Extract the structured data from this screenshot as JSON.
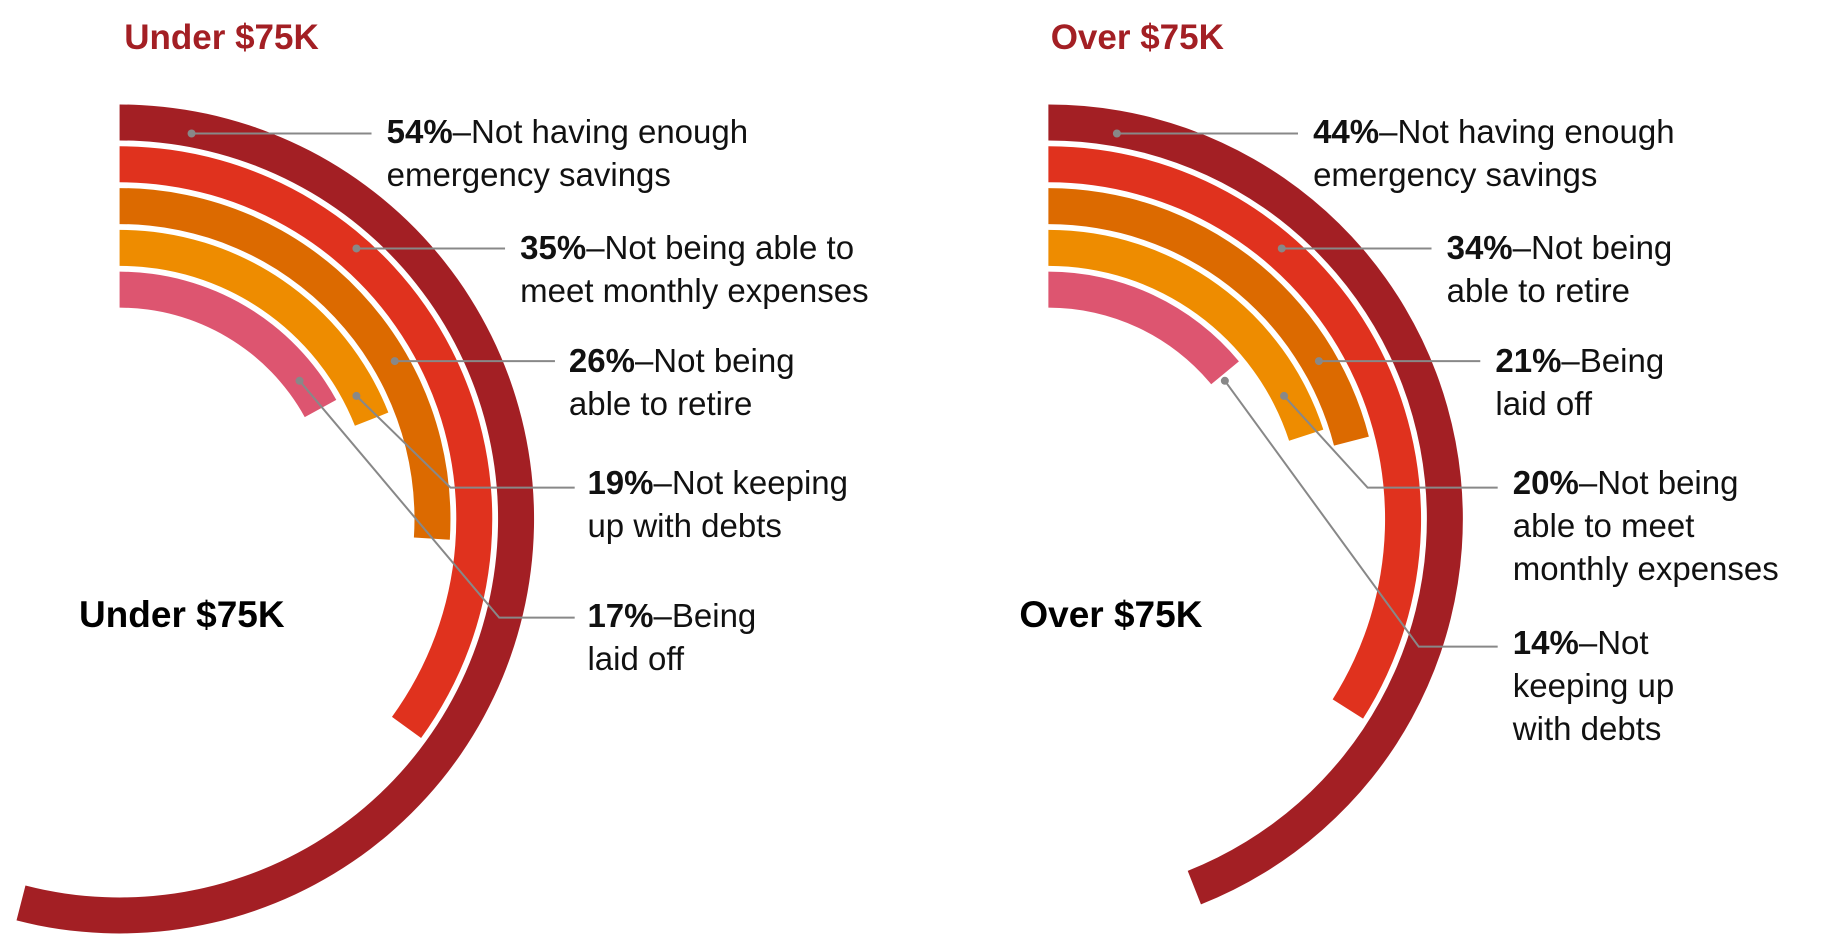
{
  "chart_data": [
    {
      "type": "radial-bar",
      "title": "Under $75K",
      "center_label": "Under $75K",
      "label_separator": "–",
      "categories": [
        "Not having enough\nemergency savings",
        "Not being able to\nmeet monthly expenses",
        "Not being\nable to retire",
        "Not keeping\nup with debts",
        "Being\nlaid off"
      ],
      "values": [
        54,
        35,
        26,
        19,
        17
      ],
      "value_labels": [
        "54%",
        "35%",
        "26%",
        "19%",
        "17%"
      ],
      "colors": [
        "#a31f24",
        "#e0321e",
        "#dc6a00",
        "#ee8c00",
        "#dd5570"
      ],
      "vlim": [
        0,
        100
      ]
    },
    {
      "type": "radial-bar",
      "title": "Over $75K",
      "center_label": "Over $75K",
      "label_separator": "–",
      "categories": [
        "Not having enough\nemergency savings",
        "Not being\nable to retire",
        "Being\nlaid off",
        "Not being\nable to meet\nmonthly expenses",
        "Not\nkeeping up\nwith debts"
      ],
      "values": [
        44,
        34,
        21,
        20,
        14
      ],
      "value_labels": [
        "44%",
        "34%",
        "21%",
        "20%",
        "14%"
      ],
      "colors": [
        "#a31f24",
        "#e0321e",
        "#dc6a00",
        "#ee8c00",
        "#dd5570"
      ],
      "vlim": [
        0,
        100
      ]
    }
  ]
}
